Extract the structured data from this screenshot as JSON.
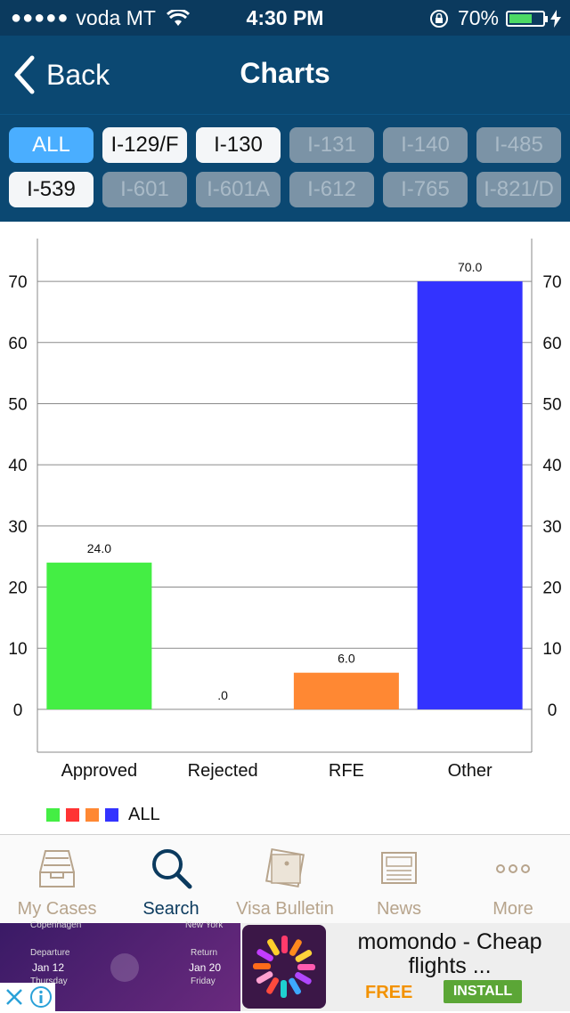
{
  "status_bar": {
    "carrier": "voda MT",
    "time": "4:30 PM",
    "battery": "70%",
    "battery_level": 0.7
  },
  "nav": {
    "back_label": "Back",
    "title": "Charts"
  },
  "filters": [
    {
      "label": "ALL",
      "state": "selected"
    },
    {
      "label": "I-129/F",
      "state": "active"
    },
    {
      "label": "I-130",
      "state": "active"
    },
    {
      "label": "I-131",
      "state": "inactive"
    },
    {
      "label": "I-140",
      "state": "inactive"
    },
    {
      "label": "I-485",
      "state": "inactive"
    },
    {
      "label": "I-539",
      "state": "active"
    },
    {
      "label": "I-601",
      "state": "inactive"
    },
    {
      "label": "I-601A",
      "state": "inactive"
    },
    {
      "label": "I-612",
      "state": "inactive"
    },
    {
      "label": "I-765",
      "state": "inactive"
    },
    {
      "label": "I-821/D",
      "state": "inactive"
    }
  ],
  "chart_data": {
    "type": "bar",
    "categories": [
      "Approved",
      "Rejected",
      "RFE",
      "Other"
    ],
    "values": [
      24.0,
      0.0,
      6.0,
      70.0
    ],
    "data_labels": [
      "24.0",
      ".0",
      "6.0",
      "70.0"
    ],
    "colors": [
      "#44ee44",
      "#ff3333",
      "#ff8833",
      "#3333ff"
    ],
    "ylim": [
      -7,
      77
    ],
    "yticks": [
      0,
      10,
      20,
      30,
      40,
      50,
      60,
      70
    ],
    "grid": true,
    "legend": {
      "label": "ALL",
      "placement": "bottom-left"
    }
  },
  "tabbar": [
    {
      "label": "My Cases",
      "icon": "inbox-tray-icon",
      "active": false
    },
    {
      "label": "Search",
      "icon": "search-icon",
      "active": true
    },
    {
      "label": "Visa Bulletin",
      "icon": "pinned-note-icon",
      "active": false
    },
    {
      "label": "News",
      "icon": "newspaper-icon",
      "active": false
    },
    {
      "label": "More",
      "icon": "more-dots-icon",
      "active": false
    }
  ],
  "ad": {
    "title": "momondo - Cheap flights ...",
    "free_label": "FREE",
    "install_label": "INSTALL",
    "image_text": {
      "from_city": "Copenhagen",
      "to_city": "New York",
      "departure_label": "Departure",
      "departure_date": "Jan 12",
      "departure_day": "Thursday",
      "return_label": "Return",
      "return_date": "Jan 20",
      "return_day": "Friday"
    }
  }
}
